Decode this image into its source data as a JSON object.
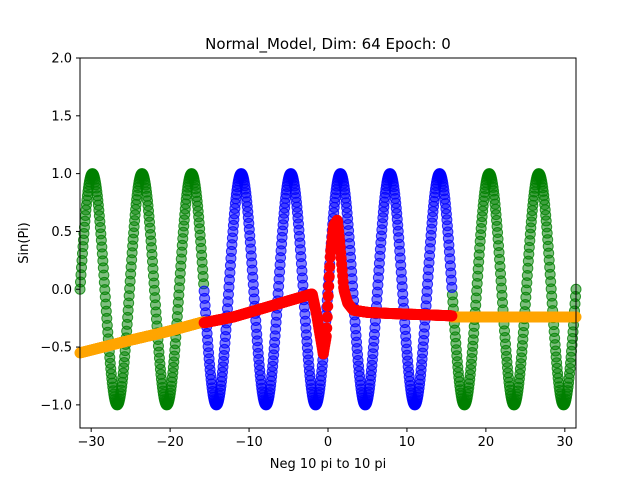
{
  "chart_data": {
    "type": "scatter",
    "title": "Normal_Model, Dim: 64 Epoch: 0",
    "xlabel": "Neg 10 pi to 10 pi",
    "ylabel": "Sin(Pi)",
    "xlim": [
      -31.4159,
      31.4159
    ],
    "ylim": [
      -1.2,
      2.0
    ],
    "xticks": [
      -30,
      -20,
      -10,
      0,
      10,
      20,
      30
    ],
    "xtick_labels": [
      "−30",
      "−20",
      "−10",
      "0",
      "10",
      "20",
      "30"
    ],
    "yticks": [
      -1.0,
      -0.5,
      0.0,
      0.5,
      1.0,
      1.5,
      2.0
    ],
    "ytick_labels": [
      "−1.0",
      "−0.5",
      "0.0",
      "0.5",
      "1.0",
      "1.5",
      "2.0"
    ],
    "grid": false,
    "colors": {
      "green_sin": "#008000",
      "blue_sin": "#0000ff",
      "orange_pred": "#ffa500",
      "red_pred": "#ff0000"
    },
    "series": [
      {
        "color": "green",
        "description_fn": "sin(x) for |x| > 5pi",
        "x_range": [
          -31.4159,
          31.4159
        ],
        "mask": "outer",
        "threshold": 15.708,
        "alpha": 0.5
      },
      {
        "color": "blue",
        "description_fn": "sin(x) for |x| <= 5pi",
        "x_range": [
          -15.708,
          15.708
        ],
        "mask": "inner",
        "alpha": 0.5
      },
      {
        "color": "orange",
        "points": [
          [
            -31.4159,
            -0.55
          ],
          [
            -25,
            -0.44
          ],
          [
            -20,
            -0.36
          ],
          [
            -15.708,
            -0.28
          ],
          [
            15.708,
            -0.24
          ],
          [
            20,
            -0.24
          ],
          [
            25,
            -0.24
          ],
          [
            31.4159,
            -0.24
          ]
        ],
        "alpha": 1.0
      },
      {
        "color": "red",
        "points": [
          [
            -15.708,
            -0.29
          ],
          [
            -12,
            -0.24
          ],
          [
            -8,
            -0.16
          ],
          [
            -4,
            -0.08
          ],
          [
            -2,
            -0.04
          ],
          [
            -1.5,
            -0.2
          ],
          [
            -1,
            -0.4
          ],
          [
            -0.6,
            -0.56
          ],
          [
            -0.2,
            -0.4
          ],
          [
            0,
            -0.1
          ],
          [
            0.3,
            0.3
          ],
          [
            0.7,
            0.55
          ],
          [
            1.2,
            0.6
          ],
          [
            1.5,
            0.4
          ],
          [
            2.0,
            0.0
          ],
          [
            2.5,
            -0.12
          ],
          [
            3.2,
            -0.18
          ],
          [
            5,
            -0.2
          ],
          [
            8,
            -0.21
          ],
          [
            12,
            -0.22
          ],
          [
            15.708,
            -0.23
          ]
        ],
        "alpha": 1.0
      }
    ]
  }
}
